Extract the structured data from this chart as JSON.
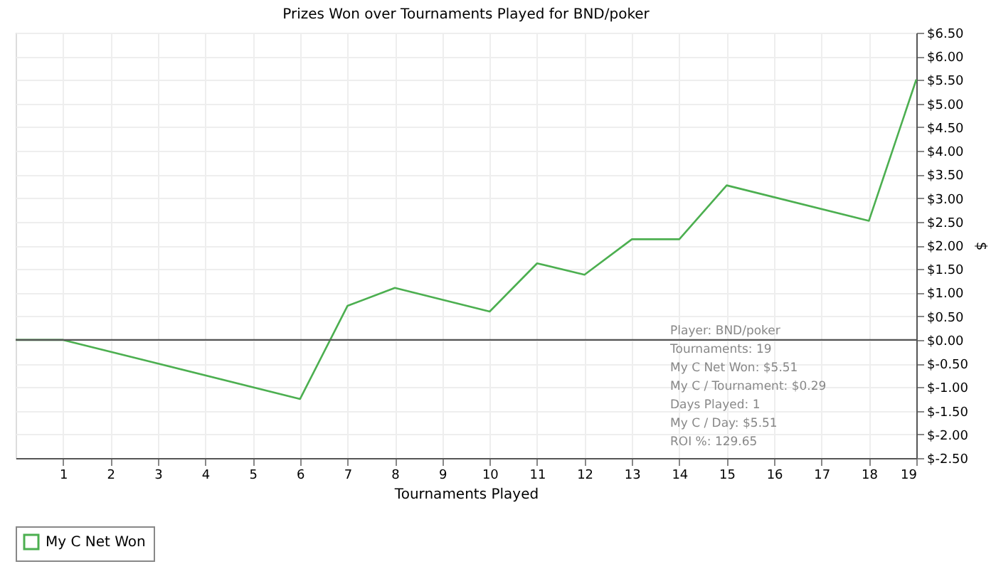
{
  "chart_data": {
    "type": "line",
    "title": "Prizes Won over Tournaments Played for BND/poker",
    "xlabel": "Tournaments Played",
    "ylabel": "$",
    "x": [
      0,
      1,
      6,
      7,
      8,
      10,
      11,
      12,
      13,
      14,
      15,
      18,
      19
    ],
    "series": [
      {
        "name": "My C Net Won",
        "color": "#4caf50",
        "values": [
          0,
          0,
          -1.25,
          0.72,
          1.1,
          0.6,
          1.62,
          1.38,
          2.13,
          2.13,
          3.27,
          2.52,
          5.51
        ]
      }
    ],
    "xlim": [
      0,
      19
    ],
    "xticks": [
      1,
      2,
      3,
      4,
      5,
      6,
      7,
      8,
      9,
      10,
      11,
      12,
      13,
      14,
      15,
      16,
      17,
      18,
      19
    ],
    "ylim": [
      -2.5,
      6.5
    ],
    "yticks": [
      {
        "value": -2.5,
        "label": "$-2.50"
      },
      {
        "value": -2.0,
        "label": "$-2.00"
      },
      {
        "value": -1.5,
        "label": "$-1.50"
      },
      {
        "value": -1.0,
        "label": "$-1.00"
      },
      {
        "value": -0.5,
        "label": "$-0.50"
      },
      {
        "value": 0,
        "label": "$0.00"
      },
      {
        "value": 0.5,
        "label": "$0.50"
      },
      {
        "value": 1.0,
        "label": "$1.00"
      },
      {
        "value": 1.5,
        "label": "$1.50"
      },
      {
        "value": 2.0,
        "label": "$2.00"
      },
      {
        "value": 2.5,
        "label": "$2.50"
      },
      {
        "value": 3.0,
        "label": "$3.00"
      },
      {
        "value": 3.5,
        "label": "$3.50"
      },
      {
        "value": 4.0,
        "label": "$4.00"
      },
      {
        "value": 4.5,
        "label": "$4.50"
      },
      {
        "value": 5.0,
        "label": "$5.00"
      },
      {
        "value": 5.5,
        "label": "$5.50"
      },
      {
        "value": 6.0,
        "label": "$6.00"
      },
      {
        "value": 6.5,
        "label": "$6.50"
      }
    ],
    "ref_lines": [
      {
        "axis": "y",
        "value": 0,
        "color": "#555555"
      }
    ],
    "annotations": [
      "Player: BND/poker",
      "Tournaments: 19",
      "My C Net Won: $5.51",
      "My C / Tournament: $0.29",
      "Days Played: 1",
      "My C / Day: $5.51",
      "ROI %: 129.65"
    ],
    "grid": true,
    "legend": "bottom left",
    "marker": "none",
    "line_style": "solid"
  }
}
